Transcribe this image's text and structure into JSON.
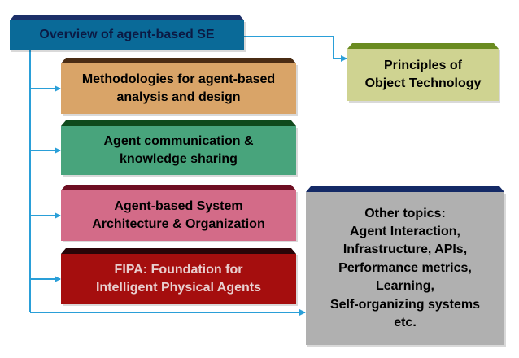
{
  "colors": {
    "connector": "#2a9fd8"
  },
  "boxes": {
    "overview": {
      "label": "Overview of agent-based SE"
    },
    "principles": {
      "label": "Principles of\nObject Technology"
    },
    "methodologies": {
      "label": "Methodologies for agent-based\nanalysis and design"
    },
    "communication": {
      "label": "Agent communication &\nknowledge sharing"
    },
    "architecture": {
      "label": "Agent-based System\nArchitecture & Organization"
    },
    "fipa": {
      "label": "FIPA: Foundation for\nIntelligent Physical Agents"
    },
    "other": {
      "label": "Other topics:\nAgent Interaction,\nInfrastructure, APIs,\nPerformance metrics,\nLearning,\nSelf-organizing systems\netc."
    }
  }
}
